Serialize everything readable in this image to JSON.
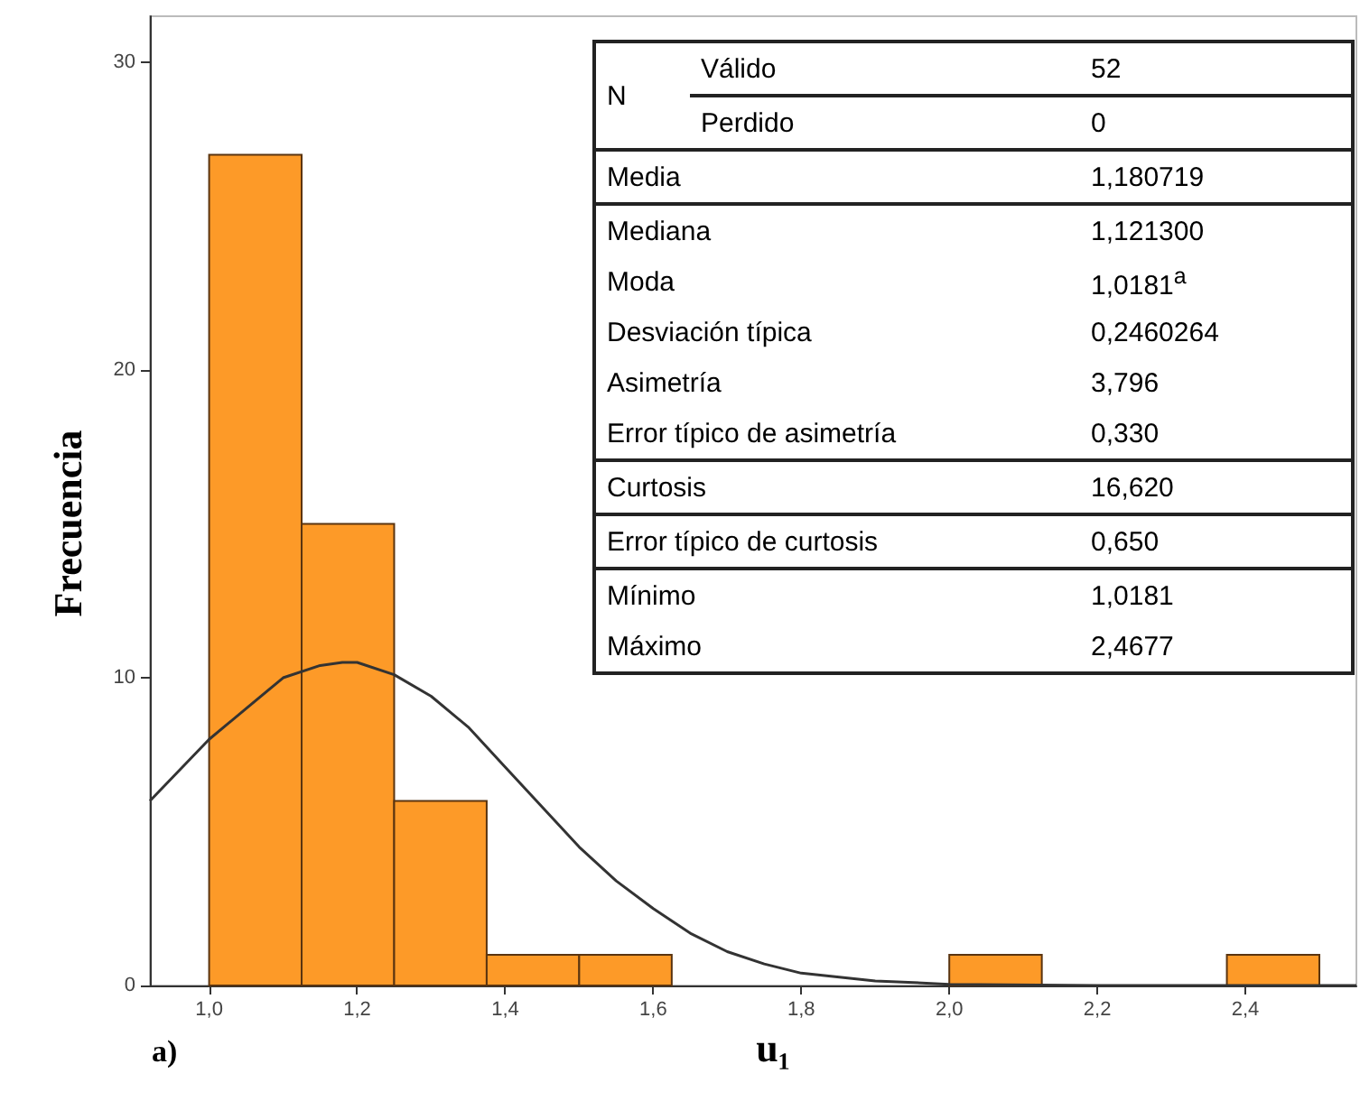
{
  "chart_data": {
    "type": "histogram",
    "xlabel": "u₁",
    "ylabel": "Frecuencia",
    "bins": [
      1.0,
      1.125,
      1.25,
      1.375,
      1.5,
      1.625,
      1.75,
      1.875,
      2.0,
      2.125,
      2.25,
      2.375,
      2.5
    ],
    "values": [
      27,
      15,
      6,
      1,
      1,
      0,
      0,
      0,
      1,
      0,
      0,
      1
    ],
    "color": "#fd9a28",
    "series": [
      {
        "type": "line",
        "color": "#333333",
        "x": [
          0.92,
          1.0,
          1.05,
          1.1,
          1.15,
          1.18,
          1.2,
          1.25,
          1.3,
          1.35,
          1.4,
          1.45,
          1.5,
          1.55,
          1.6,
          1.65,
          1.7,
          1.75,
          1.8,
          1.9,
          2.0,
          2.2,
          2.55
        ],
        "values": [
          6.0,
          8.0,
          9.0,
          10.0,
          10.4,
          10.5,
          10.5,
          10.1,
          9.4,
          8.4,
          7.1,
          5.8,
          4.5,
          3.4,
          2.5,
          1.7,
          1.1,
          0.7,
          0.4,
          0.15,
          0.04,
          0,
          0
        ]
      }
    ],
    "marker": "none",
    "xlim": [
      0.92,
      2.55
    ],
    "xticks": [
      {
        "value": 1.0,
        "label": "1,0"
      },
      {
        "value": 1.2,
        "label": "1,2"
      },
      {
        "value": 1.4,
        "label": "1,4"
      },
      {
        "value": 1.6,
        "label": "1,6"
      },
      {
        "value": 1.8,
        "label": "1,8"
      },
      {
        "value": 2.0,
        "label": "2,0"
      },
      {
        "value": 2.2,
        "label": "2,2"
      },
      {
        "value": 2.4,
        "label": "2,4"
      }
    ],
    "ylim": [
      0,
      31.5
    ],
    "yticks": [
      0,
      10,
      20,
      30
    ],
    "grid": false,
    "annotations": [
      "a)",
      "N",
      "Válido",
      "52",
      "Perdido",
      "0",
      "Media",
      "1,180719",
      "Mediana",
      "1,121300",
      "Moda",
      "1,0181$^{a}$",
      "Desviación típica",
      "0,2460264",
      "Asimetría",
      "3,796",
      "Error típico de asimetría",
      "0,330",
      "Curtosis",
      "16,620",
      "Error típico de curtosis",
      "0,650",
      "Mínimo",
      "1,0181",
      "Máximo",
      "2,4677"
    ]
  }
}
